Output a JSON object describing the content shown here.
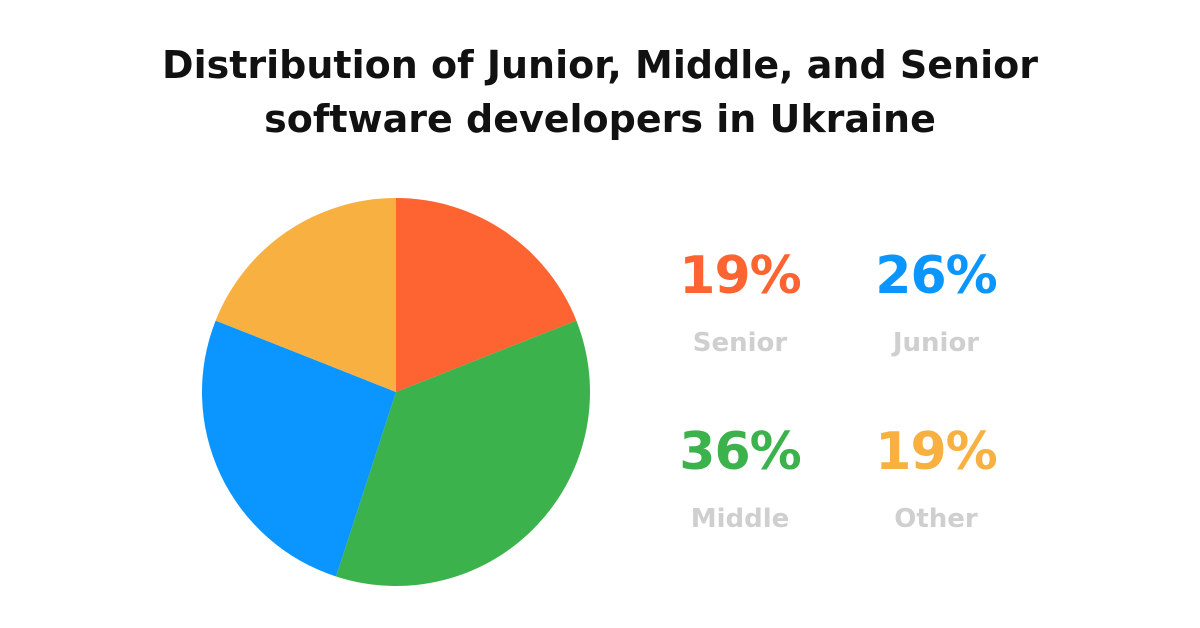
{
  "title_line1": "Distribution of Junior, Middle, and Senior",
  "title_line2": "software developers in Ukraine",
  "chart_data": {
    "type": "pie",
    "title": "Distribution of Junior, Middle, and Senior software developers in Ukraine",
    "slices": [
      {
        "label": "Senior",
        "value": 19,
        "display": "19%",
        "color": "#fe6431"
      },
      {
        "label": "Middle",
        "value": 36,
        "display": "36%",
        "color": "#3cb24c"
      },
      {
        "label": "Junior",
        "value": 26,
        "display": "26%",
        "color": "#0a96fe"
      },
      {
        "label": "Other",
        "value": 19,
        "display": "19%",
        "color": "#f8b041"
      }
    ],
    "legend": [
      {
        "value": "19%",
        "label": "Senior",
        "color": "#fe6431"
      },
      {
        "value": "26%",
        "label": "Junior",
        "color": "#0a96fe"
      },
      {
        "value": "36%",
        "label": "Middle",
        "color": "#3cb24c"
      },
      {
        "value": "19%",
        "label": "Other",
        "color": "#f8b041"
      }
    ],
    "legend_placement": "right"
  }
}
